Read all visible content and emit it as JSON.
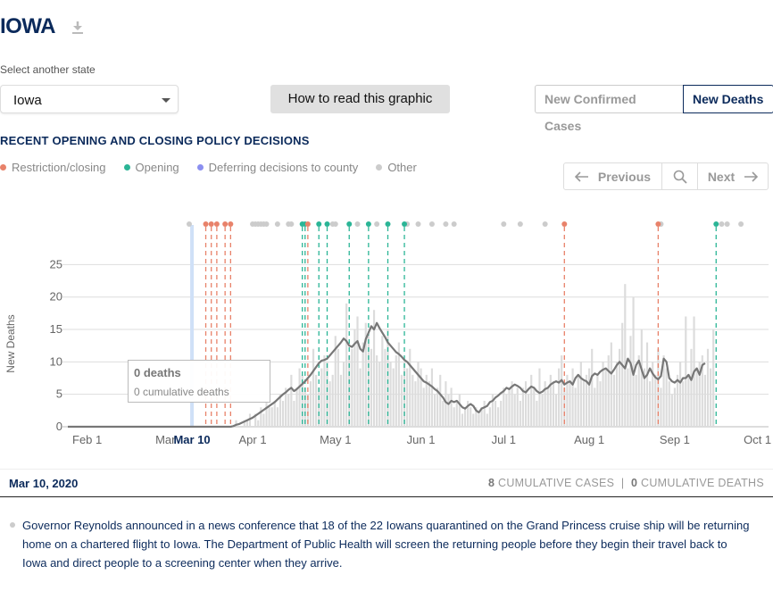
{
  "page": {
    "title": "IOWA",
    "select_label": "Select another state",
    "selected_state": "Iowa",
    "how_to_read": "How to read this graphic",
    "toggle": {
      "cases": "New Confirmed Cases",
      "deaths": "New Deaths"
    },
    "policy_heading": "RECENT OPENING AND CLOSING POLICY DECISIONS",
    "legend": [
      {
        "label": "Restriction/closing",
        "color": "#e8826a"
      },
      {
        "label": "Opening",
        "color": "#2bb596"
      },
      {
        "label": "Deferring decisions to county",
        "color": "#8b8ff0"
      },
      {
        "label": "Other",
        "color": "#cccccc"
      }
    ],
    "nav": {
      "previous": "Previous",
      "next": "Next"
    },
    "tooltip": {
      "title": "0 deaths",
      "subtitle": "0 cumulative deaths"
    },
    "info": {
      "date": "Mar 10, 2020",
      "cases_count": "8",
      "cases_label": "CUMULATIVE CASES",
      "separator": "|",
      "deaths_count": "0",
      "deaths_label": "CUMULATIVE DEATHS"
    },
    "note": "Governor Reynolds announced in a news conference that 18 of the 22 Iowans quarantined on the Grand Princess cruise ship will be returning home on a chartered flight to Iowa. The Department of Public Health will screen the returning people before they begin their travel back to Iowa and direct people to a screening center when they arrive."
  },
  "chart_data": {
    "type": "bar",
    "ylabel": "New Deaths",
    "xlabel": "",
    "ylim": [
      0,
      27
    ],
    "yticks": [
      0,
      5,
      10,
      15,
      20,
      25
    ],
    "x_start_day": "Jan 25",
    "x_end_day": "Oct 5",
    "xtick_labels": [
      "Feb 1",
      "Mar",
      "Apr 1",
      "May 1",
      "Jun 1",
      "Jul 1",
      "Aug 1",
      "Sep 1",
      "Oct 1"
    ],
    "highlight_label": "Mar 10",
    "grid": true,
    "series": [
      {
        "name": "daily",
        "kind": "bar",
        "color": "#dddddd"
      },
      {
        "name": "7-day average",
        "kind": "line",
        "color": "#777777"
      }
    ],
    "daily_sample": {
      "from": "Mar 24",
      "values": [
        0,
        0,
        1,
        0,
        0,
        1,
        1,
        2,
        0,
        2,
        1,
        3,
        2,
        4,
        3,
        3,
        4,
        3,
        5,
        4,
        6,
        5,
        8,
        4,
        6,
        9,
        8,
        6,
        5,
        7,
        12,
        8,
        6,
        9,
        11,
        10,
        7,
        8,
        14,
        12,
        8,
        10,
        19,
        11,
        12,
        15,
        17,
        9,
        13,
        16,
        14,
        12,
        18,
        11,
        10,
        14,
        12,
        15,
        10,
        9,
        11,
        13,
        8,
        10,
        9,
        12,
        8,
        7,
        10,
        9,
        6,
        8,
        7,
        9,
        5,
        6,
        8,
        4,
        7,
        5,
        6,
        3,
        4,
        5,
        2,
        3,
        4,
        3,
        2,
        3,
        2,
        3,
        4,
        2,
        3,
        5,
        4,
        3,
        4,
        6,
        5,
        6,
        7,
        5,
        6,
        4,
        6,
        7,
        5,
        8,
        6,
        4,
        9,
        5,
        7,
        6,
        8,
        7,
        5,
        9,
        11,
        6,
        8,
        7,
        9,
        6,
        8,
        10,
        7,
        8,
        9,
        12,
        6,
        8,
        7,
        10,
        9,
        11,
        13,
        8,
        10,
        12,
        16,
        22,
        9,
        14,
        20,
        8,
        11,
        15,
        9,
        13,
        7,
        10,
        8,
        12,
        6,
        11,
        9,
        7,
        5,
        6,
        8,
        10,
        7,
        17,
        8,
        12,
        17,
        9,
        10,
        11,
        8,
        12,
        9,
        15
      ]
    },
    "avg_sample": {
      "from": "Mar 24",
      "values": [
        0,
        0.1,
        0.3,
        0.4,
        0.6,
        0.8,
        1,
        1.2,
        1.4,
        1.7,
        2,
        2.3,
        2.6,
        2.9,
        3.2,
        3.5,
        3.8,
        4.2,
        4.6,
        5,
        5.3,
        5.7,
        6,
        5.5,
        5.8,
        6.2,
        6.6,
        7,
        7.5,
        8,
        8.6,
        9.2,
        9.8,
        10.2,
        10.3,
        10.5,
        11,
        11.5,
        12,
        12.5,
        13,
        13.6,
        13.2,
        12.5,
        12.3,
        12.8,
        13.2,
        12,
        11.6,
        13.5,
        14.5,
        15.5,
        15,
        16,
        15.2,
        14.5,
        13.8,
        13,
        12.5,
        12,
        11.5,
        11.2,
        10.8,
        10.3,
        10,
        9.5,
        9,
        8.5,
        8,
        7.5,
        7,
        6.8,
        6.5,
        6.2,
        5.8,
        5.5,
        5,
        4.5,
        3.8,
        3.5,
        4,
        3.8,
        4,
        3.5,
        3,
        2.8,
        3.2,
        3.5,
        3.2,
        2.5,
        2.2,
        2.8,
        3,
        3.2,
        3.8,
        4,
        4.5,
        4.8,
        5.2,
        5.5,
        6,
        5.8,
        6.2,
        6.5,
        6.3,
        6,
        5.5,
        5.3,
        5.8,
        6.2,
        6,
        5.5,
        5.2,
        5.4,
        5.8,
        6,
        6.5,
        6.8,
        7,
        6.8,
        7.2,
        6.5,
        6.8,
        7,
        6.5,
        7.5,
        8,
        7.5,
        7.2,
        7,
        6.5,
        7.8,
        8.2,
        8,
        8.5,
        8.8,
        9,
        8.6,
        8.2,
        8.8,
        9.5,
        10,
        9.5,
        9,
        10.5,
        9.8,
        8,
        9.5,
        10.2,
        8.8,
        7.5,
        8,
        9,
        8.2,
        7.6,
        7.3,
        7.8,
        10.5,
        10,
        7.5,
        7,
        6.8,
        7.2,
        6.8,
        7.5,
        7.5,
        8,
        7.2,
        8.5,
        9,
        8,
        9.5,
        9.8
      ]
    },
    "policy_events": [
      {
        "type": "other",
        "date": "Mar 9"
      },
      {
        "type": "restriction",
        "date": "Mar 15"
      },
      {
        "type": "restriction",
        "date": "Mar 17"
      },
      {
        "type": "restriction",
        "date": "Mar 19"
      },
      {
        "type": "restriction",
        "date": "Mar 22"
      },
      {
        "type": "restriction",
        "date": "Mar 24"
      },
      {
        "type": "other",
        "date": "Apr 1"
      },
      {
        "type": "other",
        "date": "Apr 3"
      },
      {
        "type": "opening",
        "date": "Apr 19"
      },
      {
        "type": "opening",
        "date": "Apr 20"
      },
      {
        "type": "restriction",
        "date": "Apr 21"
      },
      {
        "type": "opening",
        "date": "Apr 25"
      },
      {
        "type": "opening",
        "date": "Apr 28"
      },
      {
        "type": "opening",
        "date": "May 6"
      },
      {
        "type": "opening",
        "date": "May 13"
      },
      {
        "type": "opening",
        "date": "May 20"
      },
      {
        "type": "opening",
        "date": "May 26"
      },
      {
        "type": "restriction",
        "date": "Jul 23"
      },
      {
        "type": "restriction",
        "date": "Aug 26"
      },
      {
        "type": "opening",
        "date": "Sep 16"
      }
    ],
    "other_events": [
      "Mar 9",
      "Apr 1",
      "Apr 2",
      "Apr 3",
      "Apr 4",
      "Apr 5",
      "Apr 6",
      "Apr 10",
      "Apr 14",
      "Apr 15",
      "Apr 30",
      "May 1",
      "May 9",
      "May 16",
      "May 27",
      "May 31",
      "Jun 5",
      "Jun 10",
      "Jun 13",
      "Jul 1",
      "Jul 7",
      "Jul 16",
      "Aug 27",
      "Sep 18",
      "Sep 20",
      "Sep 25"
    ]
  }
}
